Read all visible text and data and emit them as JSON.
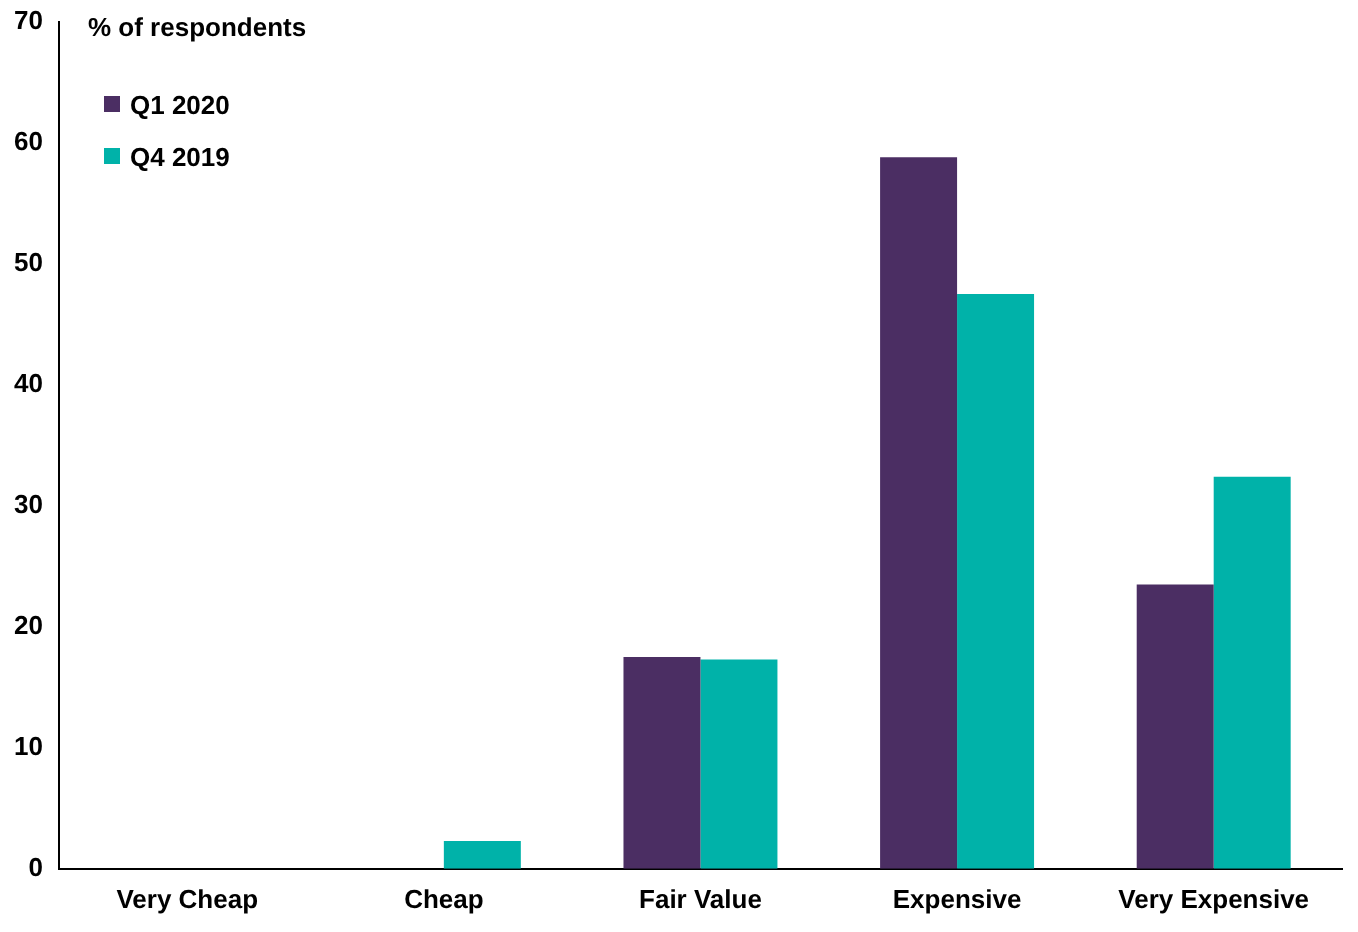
{
  "chart_data": {
    "type": "bar",
    "ylabel": "% of respondents",
    "categories": [
      "Very Cheap",
      "Cheap",
      "Fair Value",
      "Expensive",
      "Very Expensive"
    ],
    "series": [
      {
        "name": "Q1 2020",
        "color": "#4b2e63",
        "values": [
          0,
          0,
          17.5,
          58.8,
          23.5
        ]
      },
      {
        "name": "Q4 2019",
        "color": "#00b2a9",
        "values": [
          0,
          2.3,
          17.3,
          47.5,
          32.4
        ]
      }
    ],
    "ylim": [
      0,
      70
    ],
    "yticks": [
      0,
      10,
      20,
      30,
      40,
      50,
      60,
      70
    ],
    "grid": false,
    "legend": "top left"
  }
}
